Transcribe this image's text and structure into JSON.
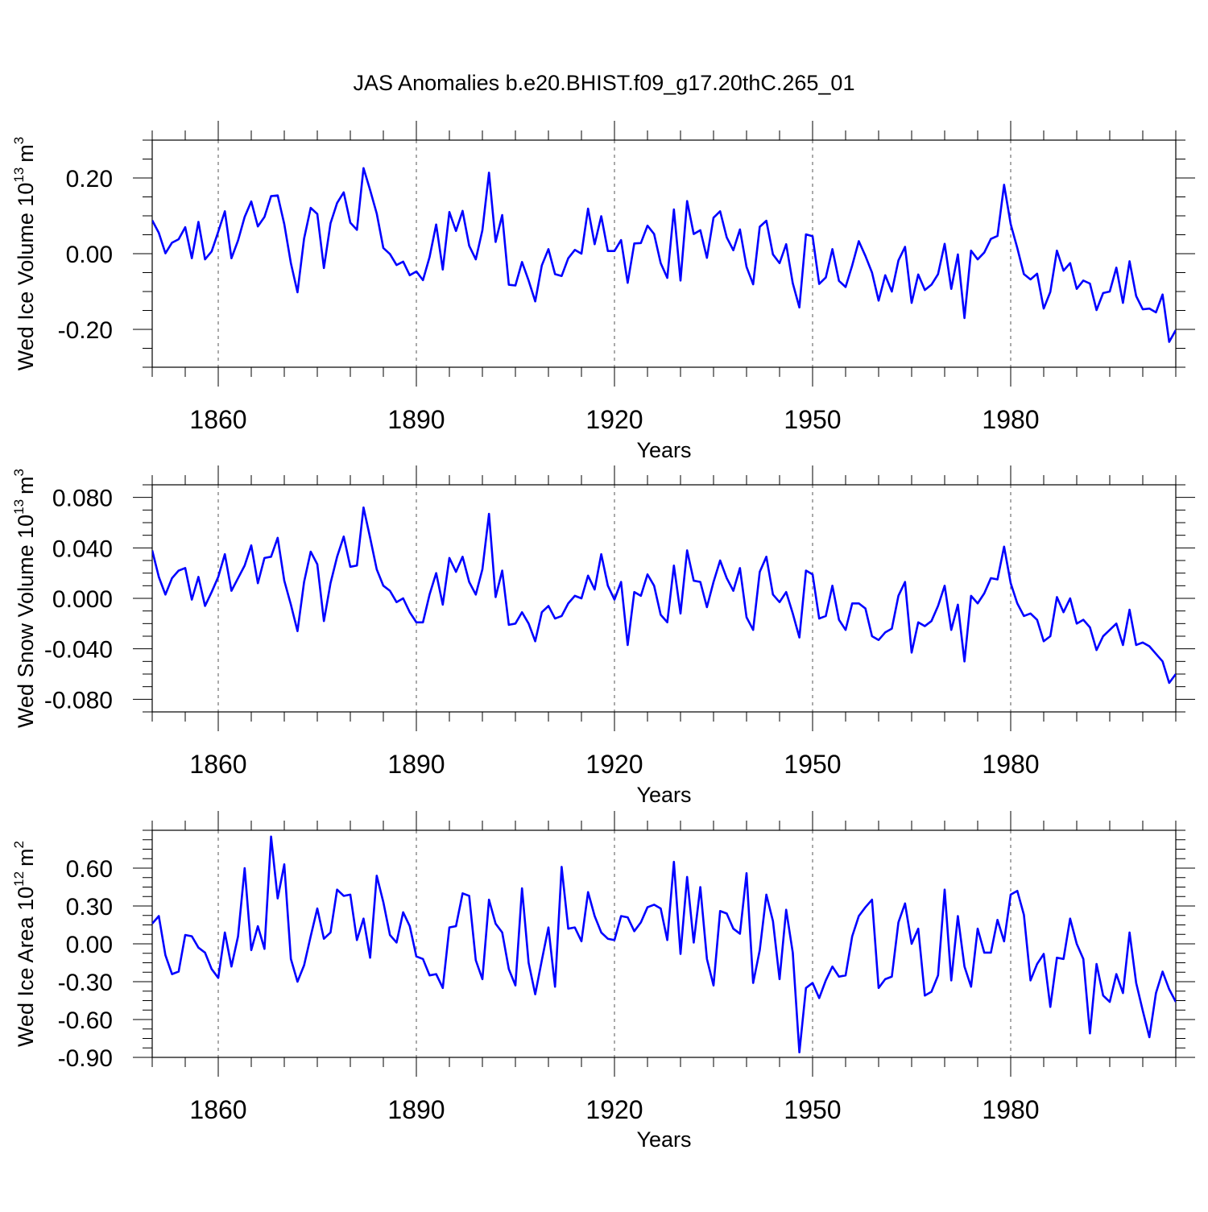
{
  "title": "JAS Anomalies b.e20.BHIST.f09_g17.20thC.265_01",
  "colors": {
    "line": "#0000ff",
    "axis": "#000000",
    "grid": "#555555",
    "background": "#ffffff"
  },
  "chart_data": [
    {
      "type": "line",
      "ylabel": "Wed Ice Volume 10",
      "ylabel_exponent": "13",
      "ylabel_unit": "m",
      "ylabel_unit_exponent": "3",
      "xlabel": "Years",
      "xlim": [
        1850,
        2005
      ],
      "ylim": [
        -0.3,
        0.3
      ],
      "xticks": [
        1860,
        1890,
        1920,
        1950,
        1980
      ],
      "xtick_labels": [
        "1860",
        "1890",
        "1920",
        "1950",
        "1980"
      ],
      "yticks": [
        -0.2,
        0.0,
        0.2
      ],
      "ytick_labels": [
        "-0.20",
        "0.00",
        "0.20"
      ],
      "grid": "vertical dashed at major x ticks",
      "x_start": 1850,
      "values": [
        0.088,
        0.055,
        0.001,
        0.029,
        0.038,
        0.07,
        -0.012,
        0.084,
        -0.015,
        0.006,
        0.058,
        0.112,
        -0.012,
        0.035,
        0.097,
        0.138,
        0.072,
        0.097,
        0.152,
        0.154,
        0.078,
        -0.025,
        -0.102,
        0.04,
        0.121,
        0.105,
        -0.038,
        0.08,
        0.134,
        0.162,
        0.082,
        0.063,
        0.226,
        0.168,
        0.106,
        0.015,
        -0.001,
        -0.03,
        -0.021,
        -0.057,
        -0.047,
        -0.07,
        -0.009,
        0.077,
        -0.042,
        0.11,
        0.06,
        0.113,
        0.021,
        -0.015,
        0.062,
        0.214,
        0.031,
        0.102,
        -0.082,
        -0.084,
        -0.022,
        -0.071,
        -0.126,
        -0.031,
        0.012,
        -0.054,
        -0.059,
        -0.012,
        0.01,
        0.0,
        0.119,
        0.025,
        0.099,
        0.007,
        0.007,
        0.036,
        -0.077,
        0.027,
        0.028,
        0.074,
        0.052,
        -0.025,
        -0.064,
        0.117,
        -0.071,
        0.139,
        0.052,
        0.062,
        -0.011,
        0.095,
        0.112,
        0.043,
        0.009,
        0.064,
        -0.035,
        -0.081,
        0.071,
        0.087,
        -0.002,
        -0.025,
        0.025,
        -0.078,
        -0.142,
        0.051,
        0.046,
        -0.08,
        -0.063,
        0.012,
        -0.072,
        -0.088,
        -0.031,
        0.033,
        -0.006,
        -0.05,
        -0.124,
        -0.057,
        -0.1,
        -0.018,
        0.018,
        -0.13,
        -0.055,
        -0.096,
        -0.082,
        -0.054,
        0.026,
        -0.093,
        -0.002,
        -0.17,
        0.008,
        -0.015,
        0.003,
        0.039,
        0.047,
        0.182,
        0.078,
        0.015,
        -0.054,
        -0.068,
        -0.053,
        -0.145,
        -0.101,
        0.008,
        -0.045,
        -0.025,
        -0.093,
        -0.071,
        -0.079,
        -0.149,
        -0.104,
        -0.1,
        -0.037,
        -0.13,
        -0.02,
        -0.112,
        -0.147,
        -0.145,
        -0.155,
        -0.108,
        -0.233,
        -0.202
      ]
    },
    {
      "type": "line",
      "ylabel": "Wed Snow Volume 10",
      "ylabel_exponent": "13",
      "ylabel_unit": "m",
      "ylabel_unit_exponent": "3",
      "xlabel": "Years",
      "xlim": [
        1850,
        2005
      ],
      "ylim": [
        -0.09,
        0.09
      ],
      "xticks": [
        1860,
        1890,
        1920,
        1950,
        1980
      ],
      "xtick_labels": [
        "1860",
        "1890",
        "1920",
        "1950",
        "1980"
      ],
      "yticks": [
        -0.08,
        -0.04,
        0.0,
        0.04,
        0.08
      ],
      "ytick_labels": [
        "-0.080",
        "-0.040",
        "0.000",
        "0.040",
        "0.080"
      ],
      "grid": "vertical dashed at major x ticks",
      "x_start": 1850,
      "values": [
        0.038,
        0.017,
        0.003,
        0.016,
        0.022,
        0.024,
        -0.001,
        0.017,
        -0.006,
        0.005,
        0.017,
        0.035,
        0.006,
        0.016,
        0.026,
        0.042,
        0.012,
        0.032,
        0.033,
        0.048,
        0.014,
        -0.005,
        -0.026,
        0.013,
        0.037,
        0.027,
        -0.018,
        0.012,
        0.033,
        0.049,
        0.025,
        0.026,
        0.072,
        0.048,
        0.023,
        0.01,
        0.006,
        -0.003,
        0.0,
        -0.011,
        -0.019,
        -0.019,
        0.003,
        0.02,
        -0.005,
        0.032,
        0.021,
        0.033,
        0.013,
        0.003,
        0.023,
        0.067,
        0.001,
        0.022,
        -0.021,
        -0.02,
        -0.011,
        -0.02,
        -0.034,
        -0.011,
        -0.006,
        -0.016,
        -0.014,
        -0.004,
        0.002,
        0.0,
        0.018,
        0.007,
        0.035,
        0.01,
        -0.001,
        0.013,
        -0.037,
        0.005,
        0.002,
        0.019,
        0.01,
        -0.013,
        -0.019,
        0.026,
        -0.012,
        0.038,
        0.014,
        0.013,
        -0.007,
        0.013,
        0.03,
        0.016,
        0.006,
        0.024,
        -0.015,
        -0.025,
        0.021,
        0.033,
        0.003,
        -0.003,
        0.005,
        -0.012,
        -0.031,
        0.022,
        0.019,
        -0.016,
        -0.014,
        0.01,
        -0.017,
        -0.025,
        -0.004,
        -0.004,
        -0.008,
        -0.03,
        -0.033,
        -0.027,
        -0.024,
        0.002,
        0.013,
        -0.043,
        -0.019,
        -0.022,
        -0.018,
        -0.006,
        0.01,
        -0.025,
        -0.005,
        -0.05,
        0.002,
        -0.004,
        0.004,
        0.016,
        0.015,
        0.041,
        0.012,
        -0.004,
        -0.014,
        -0.012,
        -0.017,
        -0.034,
        -0.03,
        0.001,
        -0.011,
        0.0,
        -0.02,
        -0.017,
        -0.023,
        -0.041,
        -0.03,
        -0.025,
        -0.02,
        -0.037,
        -0.009,
        -0.037,
        -0.035,
        -0.038,
        -0.044,
        -0.05,
        -0.067,
        -0.06
      ]
    },
    {
      "type": "line",
      "ylabel": "Wed Ice Area 10",
      "ylabel_exponent": "12",
      "ylabel_unit": "m",
      "ylabel_unit_exponent": "2",
      "xlabel": "Years",
      "xlim": [
        1850,
        2005
      ],
      "ylim": [
        -0.9,
        0.9
      ],
      "xticks": [
        1860,
        1890,
        1920,
        1950,
        1980
      ],
      "xtick_labels": [
        "1860",
        "1890",
        "1920",
        "1950",
        "1980"
      ],
      "yticks": [
        -0.9,
        -0.6,
        -0.3,
        0.0,
        0.3,
        0.6
      ],
      "ytick_labels": [
        "-0.90",
        "-0.60",
        "-0.30",
        "0.00",
        "0.30",
        "0.60"
      ],
      "grid": "vertical dashed at major x ticks",
      "x_start": 1850,
      "values": [
        0.16,
        0.22,
        -0.09,
        -0.24,
        -0.22,
        0.07,
        0.06,
        -0.03,
        -0.07,
        -0.2,
        -0.27,
        0.09,
        -0.18,
        0.06,
        0.6,
        -0.05,
        0.14,
        -0.04,
        0.85,
        0.36,
        0.63,
        -0.12,
        -0.3,
        -0.17,
        0.06,
        0.28,
        0.04,
        0.09,
        0.43,
        0.38,
        0.39,
        0.03,
        0.2,
        -0.11,
        0.54,
        0.33,
        0.07,
        0.01,
        0.25,
        0.14,
        -0.1,
        -0.12,
        -0.25,
        -0.24,
        -0.35,
        0.13,
        0.14,
        0.4,
        0.38,
        -0.13,
        -0.28,
        0.35,
        0.16,
        0.09,
        -0.2,
        -0.33,
        0.44,
        -0.15,
        -0.4,
        -0.13,
        0.13,
        -0.34,
        0.61,
        0.12,
        0.13,
        0.02,
        0.41,
        0.22,
        0.09,
        0.04,
        0.03,
        0.22,
        0.21,
        0.1,
        0.17,
        0.29,
        0.31,
        0.28,
        0.03,
        0.65,
        -0.08,
        0.53,
        0.01,
        0.45,
        -0.12,
        -0.33,
        0.26,
        0.24,
        0.12,
        0.08,
        0.56,
        -0.31,
        -0.05,
        0.39,
        0.18,
        -0.28,
        0.27,
        -0.07,
        -0.86,
        -0.35,
        -0.31,
        -0.43,
        -0.29,
        -0.18,
        -0.26,
        -0.25,
        0.06,
        0.22,
        0.29,
        0.35,
        -0.35,
        -0.28,
        -0.26,
        0.17,
        0.32,
        0.0,
        0.12,
        -0.41,
        -0.38,
        -0.25,
        0.43,
        -0.29,
        0.22,
        -0.18,
        -0.34,
        0.12,
        -0.07,
        -0.07,
        0.19,
        0.02,
        0.39,
        0.42,
        0.23,
        -0.29,
        -0.16,
        -0.08,
        -0.5,
        -0.11,
        -0.12,
        0.2,
        0.0,
        -0.12,
        -0.71,
        -0.16,
        -0.41,
        -0.46,
        -0.24,
        -0.39,
        0.09,
        -0.31,
        -0.53,
        -0.74,
        -0.39,
        -0.22,
        -0.36,
        -0.46
      ]
    }
  ]
}
